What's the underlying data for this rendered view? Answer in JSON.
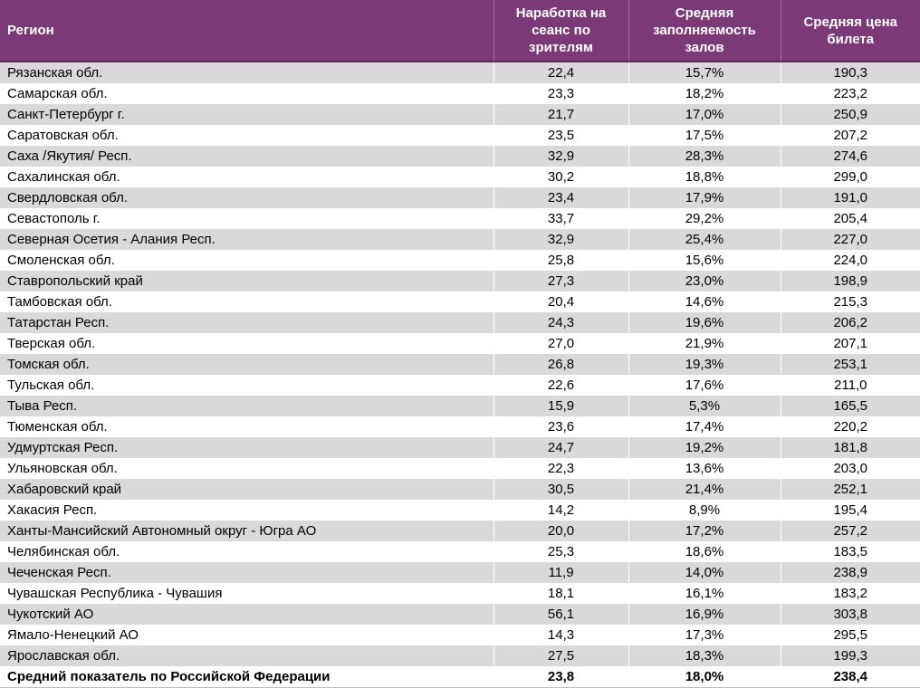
{
  "colors": {
    "header_bg": "#7B3977",
    "header_border": "#5F2B5E",
    "stripe": "#D9D9D9",
    "header_text": "#FFFFFF",
    "body_text": "#000000"
  },
  "table": {
    "headers": {
      "region": "Регион",
      "per_session_viewers": "Наработка на сеанс по зрителям",
      "occupancy": "Средняя заполняемость залов",
      "ticket_price": "Средняя цена билета"
    },
    "rows": [
      {
        "region": "Рязанская обл.",
        "per_session_viewers": "22,4",
        "occupancy": "15,7%",
        "ticket_price": "190,3"
      },
      {
        "region": "Самарская обл.",
        "per_session_viewers": "23,3",
        "occupancy": "18,2%",
        "ticket_price": "223,2"
      },
      {
        "region": "Санкт-Петербург г.",
        "per_session_viewers": "21,7",
        "occupancy": "17,0%",
        "ticket_price": "250,9"
      },
      {
        "region": "Саратовская обл.",
        "per_session_viewers": "23,5",
        "occupancy": "17,5%",
        "ticket_price": "207,2"
      },
      {
        "region": "Саха /Якутия/ Респ.",
        "per_session_viewers": "32,9",
        "occupancy": "28,3%",
        "ticket_price": "274,6"
      },
      {
        "region": "Сахалинская обл.",
        "per_session_viewers": "30,2",
        "occupancy": "18,8%",
        "ticket_price": "299,0"
      },
      {
        "region": "Свердловская обл.",
        "per_session_viewers": "23,4",
        "occupancy": "17,9%",
        "ticket_price": "191,0"
      },
      {
        "region": "Севастополь г.",
        "per_session_viewers": "33,7",
        "occupancy": "29,2%",
        "ticket_price": "205,4"
      },
      {
        "region": "Северная Осетия - Алания Респ.",
        "per_session_viewers": "32,9",
        "occupancy": "25,4%",
        "ticket_price": "227,0"
      },
      {
        "region": "Смоленская обл.",
        "per_session_viewers": "25,8",
        "occupancy": "15,6%",
        "ticket_price": "224,0"
      },
      {
        "region": "Ставропольский край",
        "per_session_viewers": "27,3",
        "occupancy": "23,0%",
        "ticket_price": "198,9"
      },
      {
        "region": "Тамбовская обл.",
        "per_session_viewers": "20,4",
        "occupancy": "14,6%",
        "ticket_price": "215,3"
      },
      {
        "region": "Татарстан Респ.",
        "per_session_viewers": "24,3",
        "occupancy": "19,6%",
        "ticket_price": "206,2"
      },
      {
        "region": "Тверская обл.",
        "per_session_viewers": "27,0",
        "occupancy": "21,9%",
        "ticket_price": "207,1"
      },
      {
        "region": "Томская обл.",
        "per_session_viewers": "26,8",
        "occupancy": "19,3%",
        "ticket_price": "253,1"
      },
      {
        "region": "Тульская обл.",
        "per_session_viewers": "22,6",
        "occupancy": "17,6%",
        "ticket_price": "211,0"
      },
      {
        "region": "Тыва Респ.",
        "per_session_viewers": "15,9",
        "occupancy": "5,3%",
        "ticket_price": "165,5"
      },
      {
        "region": "Тюменская обл.",
        "per_session_viewers": "23,6",
        "occupancy": "17,4%",
        "ticket_price": "220,2"
      },
      {
        "region": "Удмуртская Респ.",
        "per_session_viewers": "24,7",
        "occupancy": "19,2%",
        "ticket_price": "181,8"
      },
      {
        "region": "Ульяновская обл.",
        "per_session_viewers": "22,3",
        "occupancy": "13,6%",
        "ticket_price": "203,0"
      },
      {
        "region": "Хабаровский край",
        "per_session_viewers": "30,5",
        "occupancy": "21,4%",
        "ticket_price": "252,1"
      },
      {
        "region": "Хакасия Респ.",
        "per_session_viewers": "14,2",
        "occupancy": "8,9%",
        "ticket_price": "195,4"
      },
      {
        "region": "Ханты-Мансийский Автономный округ - Югра АО",
        "per_session_viewers": "20,0",
        "occupancy": "17,2%",
        "ticket_price": "257,2"
      },
      {
        "region": "Челябинская обл.",
        "per_session_viewers": "25,3",
        "occupancy": "18,6%",
        "ticket_price": "183,5"
      },
      {
        "region": "Чеченская Респ.",
        "per_session_viewers": "11,9",
        "occupancy": "14,0%",
        "ticket_price": "238,9"
      },
      {
        "region": "Чувашская Республика - Чувашия",
        "per_session_viewers": "18,1",
        "occupancy": "16,1%",
        "ticket_price": "183,2"
      },
      {
        "region": "Чукотский АО",
        "per_session_viewers": "56,1",
        "occupancy": "16,9%",
        "ticket_price": "303,8"
      },
      {
        "region": "Ямало-Ненецкий АО",
        "per_session_viewers": "14,3",
        "occupancy": "17,3%",
        "ticket_price": "295,5"
      },
      {
        "region": "Ярославская обл.",
        "per_session_viewers": "27,5",
        "occupancy": "18,3%",
        "ticket_price": "199,3"
      }
    ],
    "summary": {
      "region": "Средний показатель по Российской Федерации",
      "per_session_viewers": "23,8",
      "occupancy": "18,0%",
      "ticket_price": "238,4"
    }
  }
}
